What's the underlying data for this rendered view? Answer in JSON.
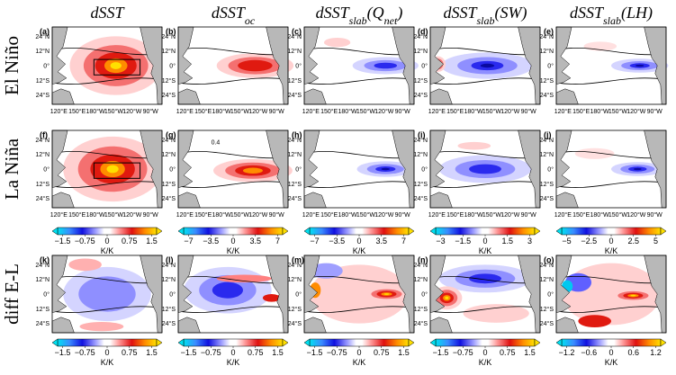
{
  "columns": [
    {
      "title": [
        {
          "text": "dSST"
        }
      ]
    },
    {
      "title": [
        {
          "text": "dSST"
        },
        {
          "sub": "oc"
        }
      ]
    },
    {
      "title": [
        {
          "text": "dSST"
        },
        {
          "sub": "slab"
        },
        {
          "text": "(Q"
        },
        {
          "sub": "net"
        },
        {
          "text": ")"
        }
      ]
    },
    {
      "title": [
        {
          "text": "dSST"
        },
        {
          "sub": "slab"
        },
        {
          "text": "(SW)"
        }
      ]
    },
    {
      "title": [
        {
          "text": "dSST"
        },
        {
          "sub": "slab"
        },
        {
          "text": "(LH)"
        }
      ]
    }
  ],
  "rows": [
    {
      "label": "El Niño",
      "panels": [
        "(a)",
        "(b)",
        "(c)",
        "(d)",
        "(e)"
      ]
    },
    {
      "label": "La Niña",
      "panels": [
        "(f)",
        "(g)",
        "(h)",
        "(i)",
        "(j)"
      ]
    },
    {
      "label": "diff E-L",
      "panels": [
        "(k)",
        "(l)",
        "(m)",
        "(n)",
        "(o)"
      ]
    }
  ],
  "lat_labels": [
    "24°N",
    "12°N",
    "0°",
    "12°S",
    "24°S"
  ],
  "lon_labels": [
    "120°E",
    "150°E",
    "180°W",
    "150°W",
    "120°W",
    "90°W"
  ],
  "annotation": "0.4",
  "colorbars": {
    "unit": "K/K",
    "top": [
      [
        "−1.5",
        "−0.75",
        "0",
        "0.75",
        "1.5"
      ],
      [
        "−7",
        "−3.5",
        "0",
        "3.5",
        "7"
      ],
      [
        "−7",
        "−3.5",
        "0",
        "3.5",
        "7"
      ],
      [
        "−3",
        "−1.5",
        "0",
        "1.5",
        "3"
      ],
      [
        "−5",
        "−2.5",
        "0",
        "2.5",
        "5"
      ]
    ],
    "bottom": [
      [
        "−1.5",
        "−0.75",
        "0",
        "0.75",
        "1.5"
      ],
      [
        "−1.5",
        "−0.75",
        "0",
        "0.75",
        "1.5"
      ],
      [
        "−1.5",
        "−0.75",
        "0",
        "0.75",
        "1.5"
      ],
      [
        "−1.5",
        "−0.75",
        "0",
        "0.75",
        "1.5"
      ],
      [
        "−1.2",
        "−0.6",
        "0",
        "0.6",
        "1.2"
      ]
    ]
  }
}
